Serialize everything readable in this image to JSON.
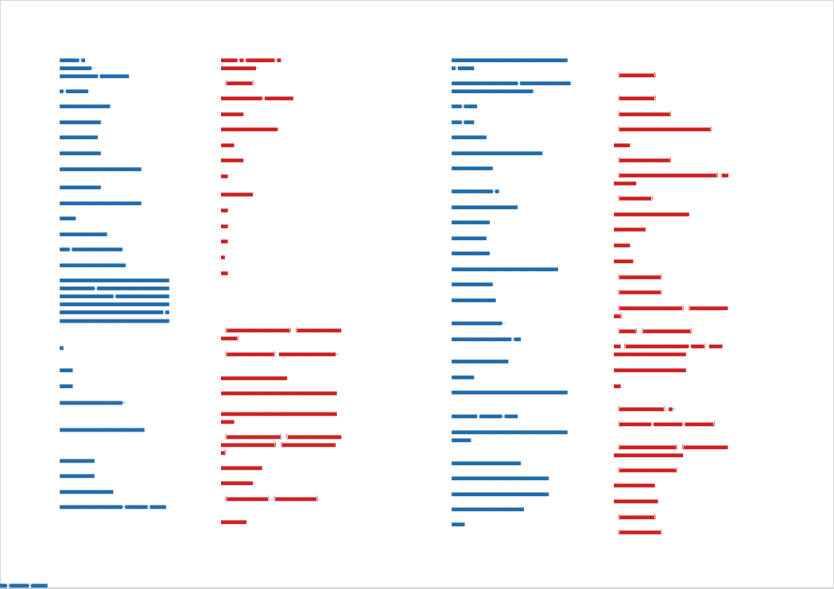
{
  "lines": [
    {
      "side": "left",
      "text": "■■■■■■–■"
    },
    {
      "side": "left",
      "text": "■■■■■■■■■■–"
    },
    {
      "side": "left",
      "text": "■■■■■■■■■■■■–■■■■■■■■■"
    },
    {
      "side": "left",
      "text": "■–■■■■■■■"
    },
    {
      "side": "left",
      "text": "■■■■■■■■■■■■■■■■"
    },
    {
      "side": "left",
      "text": "■■■■■■■■■■■■■"
    },
    {
      "side": "left",
      "text": "■■■■■■■■■■■■"
    },
    {
      "side": "left",
      "text": "■■■■■■■■■■■■■"
    },
    {
      "side": "left",
      "text": "■■■■■■■■■■■■■■■■■■■■■■■■■■"
    },
    {
      "side": "left",
      "text": "■■■■■■■■■■■■■"
    },
    {
      "side": "left",
      "text": "■■■■■■■■■■■■■■■■■■■■■■■■■■"
    },
    {
      "side": "left",
      "text": "■■■■■"
    },
    {
      "side": "left",
      "text": "■■■■■■■■■■■■■■■"
    },
    {
      "side": "left",
      "text": "■■■–■■■■■■■■■■■■■■■■"
    },
    {
      "side": "left",
      "text": "■■■■■■■■■■■■■■■■■■■■■"
    },
    {
      "side": "left",
      "text": "■■■■■■■■■■■■■■■■■■■■■■■■■■■■■■■■■■■"
    },
    {
      "side": "left",
      "text": "■■■■■■■■■■■–■■■■■■■■■■■■■■■■■■■■■■■"
    },
    {
      "side": "left",
      "text": "■■■■■■■■■■■■■■■■■–■■■■■■■■■■■■■■■■■"
    },
    {
      "side": "left",
      "text": "■■■■■■■■■■■■■■■■■■■■■■■■■■■■■■■■■■■"
    },
    {
      "side": "left",
      "text": "■■■■■■■■■■■■■■■■■■■■■■■■■■■■■■■■■–■"
    },
    {
      "side": "left",
      "text": "■■■■■■■■■■■■■■■■■■■■■■■■■■■■■■■■■■■"
    },
    {
      "side": "left",
      "text": "■"
    },
    {
      "side": "left",
      "text": "■■■■"
    },
    {
      "side": "left",
      "text": "■■■■"
    },
    {
      "side": "left",
      "text": "■■■■■■■■■■■■■■■■■■■■–"
    },
    {
      "side": "left",
      "text": "■■■■■■■■■■■■■■■■■■■■■■■■■■■"
    },
    {
      "side": "left",
      "text": "■■■■■■■■■■■"
    },
    {
      "side": "left",
      "text": "■■■■■■■■■■■"
    },
    {
      "side": "left",
      "text": "■■■■■■■■■■■■■■■■■"
    },
    {
      "side": "left",
      "text": "■■■■■■■■■■■■■■■■■■■■–■■■■■■■–■■■■■"
    },
    {
      "side": "right",
      "text": "■■■■■–■–■■■■■■■■■–■"
    },
    {
      "side": "right",
      "text": "■■■■■■■■■■■–"
    },
    {
      "side": "right",
      "text": "〔■■■■■■■■〕"
    },
    {
      "side": "right",
      "text": "■■■■■■■■■■■■■–■■■■■■■■■"
    },
    {
      "side": "right",
      "text": "■■■■■■■"
    },
    {
      "side": "right",
      "text": "■■■■■■■■■■■■■■■■■■"
    },
    {
      "side": "right",
      "text": "■■■■"
    },
    {
      "side": "right",
      "text": "■■■■■■■"
    },
    {
      "side": "right",
      "text": "■■"
    },
    {
      "side": "right",
      "text": "■■■■■■■■■■"
    },
    {
      "side": "right",
      "text": "■■"
    },
    {
      "side": "right",
      "text": "■■"
    },
    {
      "side": "right",
      "text": "■■"
    },
    {
      "side": "right",
      "text": "■"
    },
    {
      "side": "right",
      "text": "■■"
    },
    {
      "side": "right",
      "text": "〔■■■■■■■■■■■■■■■■■■■■〕〔■■■■■■■■■■■■■■"
    },
    {
      "side": "right",
      "text": "■■■■■〕"
    },
    {
      "side": "right",
      "text": "〔■■■■■■■■■■■■■■■〕■■■■■■■■■■■■■■■■■■–"
    },
    {
      "side": "right",
      "text": "■■■■■■■■■■■■■■■■■■■■■"
    },
    {
      "side": "right",
      "text": "■■■■■■■■■■■■■■■■■■■■■■■■■■■■■■■■■■■■■"
    },
    {
      "side": "right",
      "text": "■■■■■■■■■■■■■■■■■■■■■■■■■■■■■■■■■■■■■"
    },
    {
      "side": "right",
      "text": "■■■■"
    },
    {
      "side": "right",
      "text": "〔■■■■■■■■■■■■■■■■■〕〔■■■■■■■■■■■■■■■■■"
    },
    {
      "side": "right",
      "text": "■■■■■■■■■■■■■■■■■〕〔■■■■■■■■■■■■■■■■■"
    },
    {
      "side": "right",
      "text": "■〕"
    },
    {
      "side": "right",
      "text": "■■■■■■■■■■■■■"
    },
    {
      "side": "right",
      "text": "■■■■■■■■■■"
    },
    {
      "side": "right",
      "text": "〔■■■■■■■■■■■■■〕〔■■■■■■■■■■■■■〕"
    },
    {
      "side": "right",
      "text": "■■■■■■■■"
    },
    {
      "side": "left",
      "text": "■■■■■■■■■■■■■■■■■■■■■■■■■■■■■■■■■■■■■"
    },
    {
      "side": "left",
      "text": "■–■■■■■"
    },
    {
      "side": "left",
      "text": "■■■■■■■■■■■■■■■■■■■■■–■■■■■■■■■■■■■■■■"
    },
    {
      "side": "left",
      "text": "■■■■■■■■■■■■■■■■■■■■■■■■■■"
    },
    {
      "side": "left",
      "text": "■■■–■■■■"
    },
    {
      "side": "left",
      "text": "■■■–■■■"
    },
    {
      "side": "left",
      "text": "■■■■■■■■■■■"
    },
    {
      "side": "left",
      "text": "■■■■■■■■■■■■■■■■■■■■■■■■■■■■■"
    },
    {
      "side": "left",
      "text": "■■■■■■■■■■■■■"
    },
    {
      "side": "left",
      "text": "■■■■■■■■■■■■■–■"
    },
    {
      "side": "left",
      "text": "■■■■■■■■■■■■■■■■■■■■■"
    },
    {
      "side": "left",
      "text": "■■■■■■■■■■■■"
    },
    {
      "side": "left",
      "text": "■■■■■■■■■■■"
    },
    {
      "side": "left",
      "text": "■■■■■■■■■■■■"
    },
    {
      "side": "left",
      "text": "■■■■■■■■■■■■■■■■■■■■■■■■■■■■■■■■■■"
    },
    {
      "side": "left",
      "text": "■■■■■■■■■■■■■"
    },
    {
      "side": "left",
      "text": "■■■■■■■■■■■■■■"
    },
    {
      "side": "left",
      "text": "■■■■■■■■■■■■■■■■–"
    },
    {
      "side": "left",
      "text": "■■■■■■■■■■■■■■■■■■■–■■"
    },
    {
      "side": "left",
      "text": "■■■■■■■■■■■■■■■■■■"
    },
    {
      "side": "left",
      "text": "■■■■■■■"
    },
    {
      "side": "left",
      "text": "■■■■■■■■■■■■■■■■■■■■■■■■■■■■■■■■■■■■■"
    },
    {
      "side": "left",
      "text": "■■■■■■■■–■■■■■■■–■■■■"
    },
    {
      "side": "left",
      "text": "■■■■■■■■■■■■■■■■■■■■■■■■■■■■■■■■■■■■■"
    },
    {
      "side": "left",
      "text": "■■■■■■"
    },
    {
      "side": "left",
      "text": "■■■■■■■■■■■■■■■■■■■■■■"
    },
    {
      "side": "left",
      "text": "■■■■■■■■■■■■■■■■■■■■■■■■■■■■■■■"
    },
    {
      "side": "left",
      "text": "■■■■■■■■■■■■■■■■■■■■■■■■■■■■■■■"
    },
    {
      "side": "left",
      "text": "■■■■■■■■■■■■■■■■■■■■■■■"
    },
    {
      "side": "left",
      "text": "■■■■"
    },
    {
      "side": "right",
      "text": "〔■■■■■■■■■■■〕"
    },
    {
      "side": "right",
      "text": "〔■■■■■■■■■■■〕"
    },
    {
      "side": "right",
      "text": "〔■■■■■■■■■■■■■■■■〕"
    },
    {
      "side": "right",
      "text": "〔■■■■■■■■■■■■■■■■■■■■■■■■■■■■■〕"
    },
    {
      "side": "right",
      "text": "■■■■■"
    },
    {
      "side": "right",
      "text": "〔■■■■■■■■■■■■■■■■〕"
    },
    {
      "side": "right",
      "text": "〔■■■■■■■■■■■■■■■■■■■■■■■■■■■■■■■〕■■"
    },
    {
      "side": "right",
      "text": "■■■■■■■"
    },
    {
      "side": "right",
      "text": "〔■■■■■■■■■■〕"
    },
    {
      "side": "right",
      "text": "■■■■■■■■■■■■■■■■■■■■■■■■"
    },
    {
      "side": "right",
      "text": "■■■■■■■■■■"
    },
    {
      "side": "right",
      "text": "■■■■■"
    },
    {
      "side": "right",
      "text": "■■■■■■"
    },
    {
      "side": "right",
      "text": "〔■■■■■■■■■■■■■〕"
    },
    {
      "side": "right",
      "text": "〔■■■■■■■■■■■■■〕"
    },
    {
      "side": "right",
      "text": "〔■■■■■■■■■■■■■■■■■■■■〕〔■■■■■■■■■■■■"
    },
    {
      "side": "right",
      "text": "■■〕"
    },
    {
      "side": "right",
      "text": "〔■■■■■〕〔■■■■■■■■■■■■■■■〕"
    },
    {
      "side": "right",
      "text": "■■〔■■■■■■■■■■■■■■■■■■■■–■■■■〕■■■■"
    },
    {
      "side": "right",
      "text": "■■■■■■■■■■■■■■■■■■■■■■■"
    },
    {
      "side": "right",
      "text": "■■■■■■■■■■■■■■■■■■■■■■■"
    },
    {
      "side": "right",
      "text": "■■"
    },
    {
      "side": "right",
      "text": "〔■■■■■■■■■■■■■■〕■–"
    },
    {
      "side": "right",
      "text": "〔■■■■■■■■■■–■■■■■■■■■–■■■■■■■■■〕"
    },
    {
      "side": "right",
      "text": "〔■■■■■■■■■■■■■■■■■■〕〔■■■■■■■■■■■■■■"
    },
    {
      "side": "right",
      "text": "■■■■■■■■■■■■■■■■■■■■■■"
    },
    {
      "side": "right",
      "text": "〔■■■■■■■■■■■■■■■■■■〕"
    },
    {
      "side": "right",
      "text": "■■■■■■■■■■■■■"
    },
    {
      "side": "right",
      "text": "■■■■■■■■■■■■■■"
    },
    {
      "side": "right",
      "text": "〔■■■■■■■■■■■〕"
    },
    {
      "side": "right",
      "text": "〔■■■■■■■■■■■■■〕"
    }
  ],
  "footer": "■■–■■■■■■–■■■■■",
  "colors": {
    "left": "#1f6aa8",
    "right": "#cc1f1f"
  }
}
